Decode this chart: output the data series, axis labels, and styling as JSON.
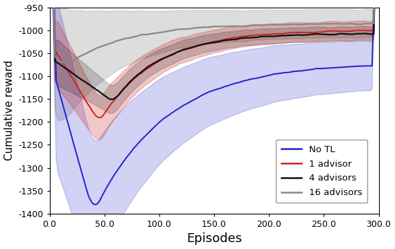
{
  "xlabel": "Episodes",
  "ylabel": "Cumulative reward",
  "xlim": [
    0,
    300
  ],
  "ylim": [
    -1400,
    -950
  ],
  "yticks": [
    -1400,
    -1350,
    -1300,
    -1250,
    -1200,
    -1150,
    -1100,
    -1050,
    -1000,
    -950
  ],
  "xticks": [
    0,
    50,
    100,
    150,
    200,
    250,
    300
  ],
  "colors": {
    "no_tl": "#2222cc",
    "advisor1": "#cc2222",
    "advisor4": "#111111",
    "advisor16": "#888888"
  },
  "legend": [
    "No TL",
    "1 advisor",
    "4 advisors",
    "16 advisors"
  ]
}
